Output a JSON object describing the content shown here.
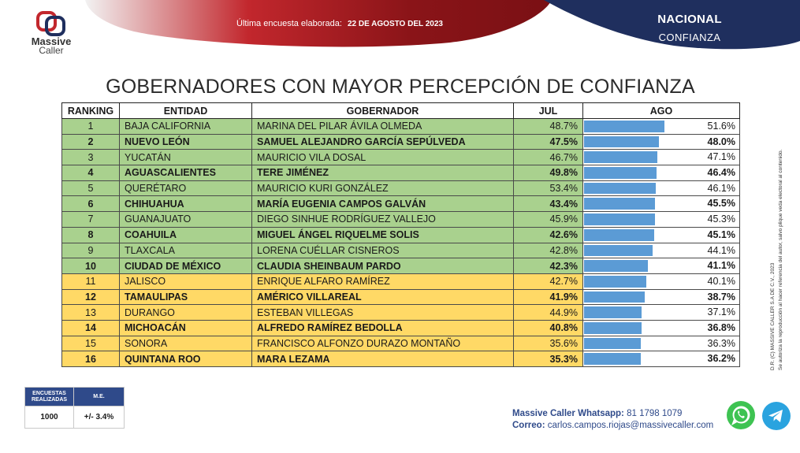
{
  "header": {
    "survey_label": "Última encuesta elaborada:",
    "survey_date": "22 DE AGOSTO DEL 2023",
    "scope": "NACIONAL",
    "metric": "CONFIANZA",
    "brand_name": "Massive",
    "brand_sub": "Caller",
    "colors": {
      "red": "#9b1b1f",
      "navy": "#1f2f5e"
    }
  },
  "title": "GOBERNADORES CON MAYOR PERCEPCIÓN DE CONFIANZA",
  "table": {
    "columns": [
      "RANKING",
      "ENTIDAD",
      "GOBERNADOR",
      "JUL",
      "AGO"
    ],
    "rows": [
      {
        "rank": "1",
        "entidad": "BAJA CALIFORNIA",
        "gobernador": "MARINA DEL PILAR ÁVILA OLMEDA",
        "jul": "48.7%",
        "ago": "51.6%",
        "ago_value": 51.6,
        "color": "green",
        "bold": false
      },
      {
        "rank": "2",
        "entidad": "NUEVO LEÓN",
        "gobernador": "SAMUEL ALEJANDRO GARCÍA SEPÚLVEDA",
        "jul": "47.5%",
        "ago": "48.0%",
        "ago_value": 48.0,
        "color": "green",
        "bold": true
      },
      {
        "rank": "3",
        "entidad": "YUCATÁN",
        "gobernador": "MAURICIO VILA DOSAL",
        "jul": "46.7%",
        "ago": "47.1%",
        "ago_value": 47.1,
        "color": "green",
        "bold": false
      },
      {
        "rank": "4",
        "entidad": "AGUASCALIENTES",
        "gobernador": "TERE JIMÉNEZ",
        "jul": "49.8%",
        "ago": "46.4%",
        "ago_value": 46.4,
        "color": "green",
        "bold": true
      },
      {
        "rank": "5",
        "entidad": "QUERÉTARO",
        "gobernador": "MAURICIO KURI GONZÁLEZ",
        "jul": "53.4%",
        "ago": "46.1%",
        "ago_value": 46.1,
        "color": "green",
        "bold": false
      },
      {
        "rank": "6",
        "entidad": "CHIHUAHUA",
        "gobernador": "MARÍA EUGENIA CAMPOS GALVÁN",
        "jul": "43.4%",
        "ago": "45.5%",
        "ago_value": 45.5,
        "color": "green",
        "bold": true
      },
      {
        "rank": "7",
        "entidad": "GUANAJUATO",
        "gobernador": "DIEGO SINHUE RODRÍGUEZ VALLEJO",
        "jul": "45.9%",
        "ago": "45.3%",
        "ago_value": 45.3,
        "color": "green",
        "bold": false
      },
      {
        "rank": "8",
        "entidad": "COAHUILA",
        "gobernador": "MIGUEL ÁNGEL RIQUELME SOLIS",
        "jul": "42.6%",
        "ago": "45.1%",
        "ago_value": 45.1,
        "color": "green",
        "bold": true
      },
      {
        "rank": "9",
        "entidad": "TLAXCALA",
        "gobernador": "LORENA CUÉLLAR CISNEROS",
        "jul": "42.8%",
        "ago": "44.1%",
        "ago_value": 44.1,
        "color": "green",
        "bold": false
      },
      {
        "rank": "10",
        "entidad": "CIUDAD DE MÉXICO",
        "gobernador": "CLAUDIA SHEINBAUM PARDO",
        "jul": "42.3%",
        "ago": "41.1%",
        "ago_value": 41.1,
        "color": "green",
        "bold": true
      },
      {
        "rank": "11",
        "entidad": "JALISCO",
        "gobernador": "ENRIQUE ALFARO RAMÍREZ",
        "jul": "42.7%",
        "ago": "40.1%",
        "ago_value": 40.1,
        "color": "yellow",
        "bold": false
      },
      {
        "rank": "12",
        "entidad": "TAMAULIPAS",
        "gobernador": "AMÉRICO VILLAREAL",
        "jul": "41.9%",
        "ago": "38.7%",
        "ago_value": 38.7,
        "color": "yellow",
        "bold": true
      },
      {
        "rank": "13",
        "entidad": "DURANGO",
        "gobernador": "ESTEBAN VILLEGAS",
        "jul": "44.9%",
        "ago": "37.1%",
        "ago_value": 37.1,
        "color": "yellow",
        "bold": false
      },
      {
        "rank": "14",
        "entidad": "MICHOACÁN",
        "gobernador": "ALFREDO RAMÍREZ BEDOLLA",
        "jul": "40.8%",
        "ago": "36.8%",
        "ago_value": 36.8,
        "color": "yellow",
        "bold": true
      },
      {
        "rank": "15",
        "entidad": "SONORA",
        "gobernador": "FRANCISCO ALFONZO DURAZO MONTAÑO",
        "jul": "35.6%",
        "ago": "36.3%",
        "ago_value": 36.3,
        "color": "yellow",
        "bold": false
      },
      {
        "rank": "16",
        "entidad": "QUINTANA ROO",
        "gobernador": "MARA LEZAMA",
        "jul": "35.3%",
        "ago": "36.2%",
        "ago_value": 36.2,
        "color": "yellow",
        "bold": true
      }
    ],
    "bar_color": "#5b9bd5",
    "bar_max": 100
  },
  "stats": {
    "surveys_label": "ENCUESTAS REALIZADAS",
    "me_label": "M.E.",
    "surveys_value": "1000",
    "me_value": "+/- 3.4%"
  },
  "contact": {
    "whatsapp_label": "Massive Caller Whatsapp:",
    "whatsapp_value": "81 1798 1079",
    "email_label": "Correo:",
    "email_value": "carlos.campos.riojas@massivecaller.com"
  },
  "copyright": {
    "line1": "D.R. (C) MASSIVE CALLER S.A DE C.V., 2023",
    "line2": "Se autoriza la reproducción al hacer referencia del autor, salvo plique veda electoral al contenido."
  }
}
